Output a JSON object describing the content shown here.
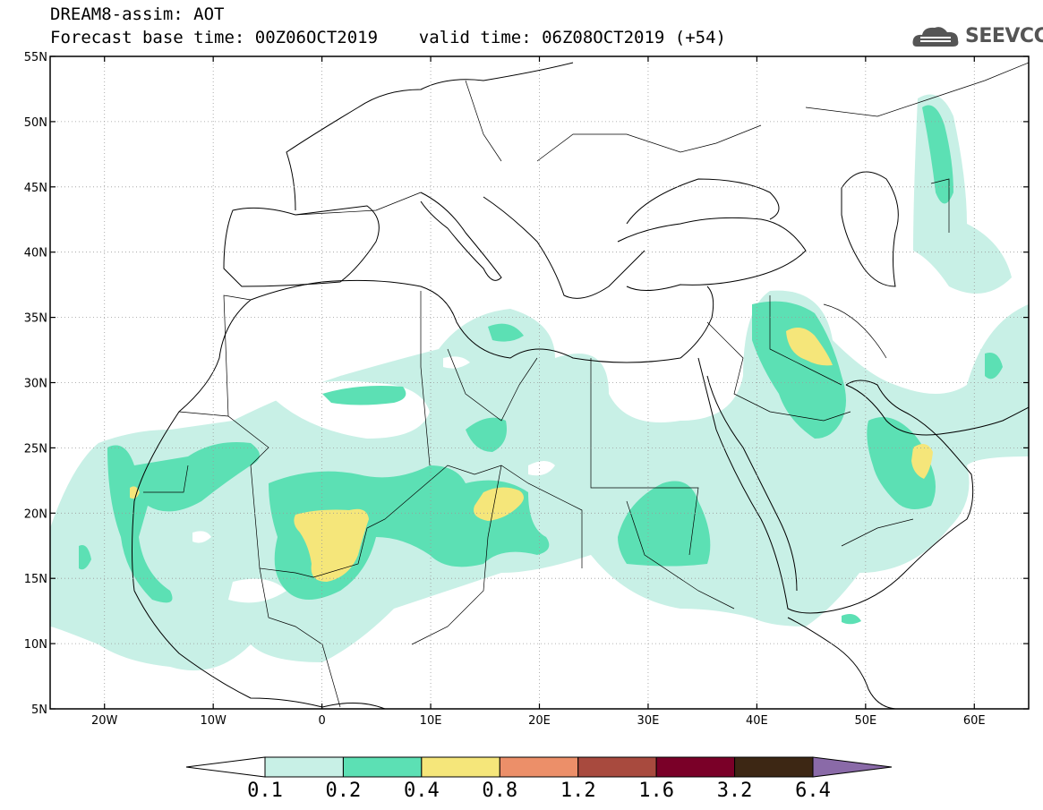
{
  "header": {
    "line1": "DREAM8-assim: AOT",
    "line2": "Forecast base time: 00Z06OCT2019    valid time: 06Z08OCT2019 (+54)",
    "logo_text": "SEEVCCC",
    "logo_icon": "cloud-logo-icon"
  },
  "map": {
    "lon_range": [
      -25,
      65
    ],
    "lat_range": [
      5,
      55
    ],
    "lon_ticks": [
      {
        "v": -20,
        "label": "20W"
      },
      {
        "v": -10,
        "label": "10W"
      },
      {
        "v": 0,
        "label": "0"
      },
      {
        "v": 10,
        "label": "10E"
      },
      {
        "v": 20,
        "label": "20E"
      },
      {
        "v": 30,
        "label": "30E"
      },
      {
        "v": 40,
        "label": "40E"
      },
      {
        "v": 50,
        "label": "50E"
      },
      {
        "v": 60,
        "label": "60E"
      }
    ],
    "lat_ticks": [
      {
        "v": 5,
        "label": "5N"
      },
      {
        "v": 10,
        "label": "10N"
      },
      {
        "v": 15,
        "label": "15N"
      },
      {
        "v": 20,
        "label": "20N"
      },
      {
        "v": 25,
        "label": "25N"
      },
      {
        "v": 30,
        "label": "30N"
      },
      {
        "v": 35,
        "label": "35N"
      },
      {
        "v": 40,
        "label": "40N"
      },
      {
        "v": 45,
        "label": "45N"
      },
      {
        "v": 50,
        "label": "50N"
      },
      {
        "v": 55,
        "label": "55N"
      }
    ],
    "grid": "dotted"
  },
  "colorbar": {
    "labels": [
      "0.1",
      "0.2",
      "0.4",
      "0.8",
      "1.2",
      "1.6",
      "3.2",
      "6.4"
    ],
    "colors": [
      "#ffffff",
      "#c8f0e6",
      "#5ce0b4",
      "#f5e67a",
      "#ec8f69",
      "#a84a3e",
      "#7a0028",
      "#3d2714",
      "#8a6aa8"
    ]
  }
}
